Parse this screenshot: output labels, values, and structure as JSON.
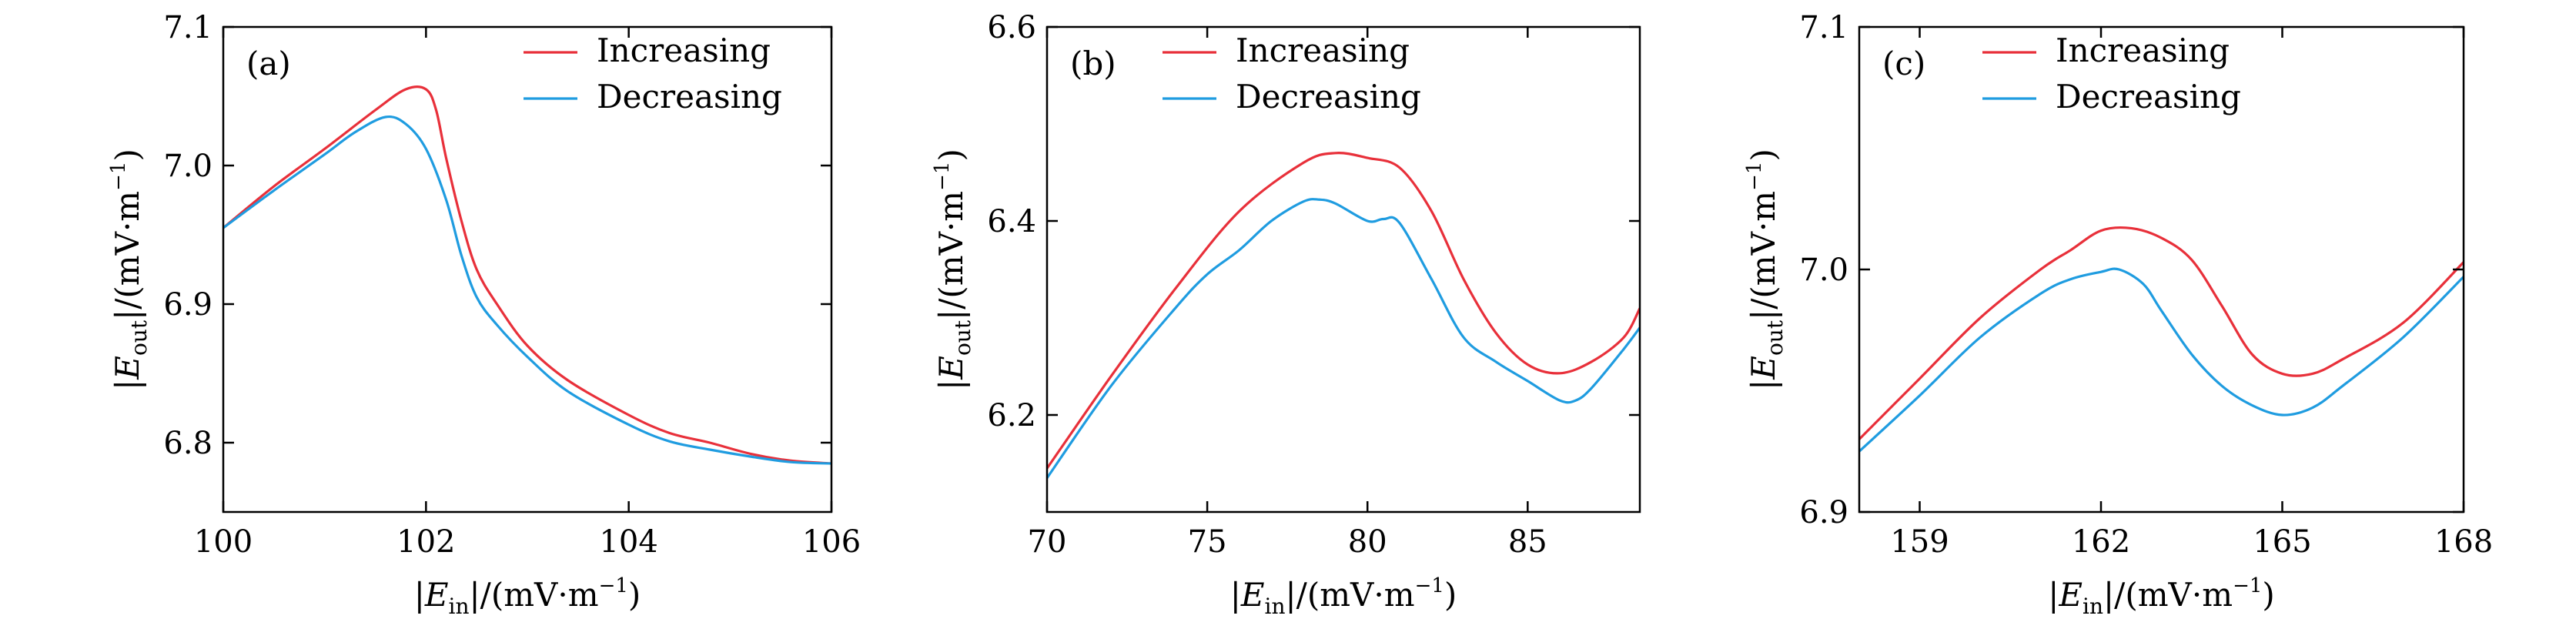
{
  "chart_data": [
    {
      "type": "line",
      "panel_label": "(a)",
      "xlabel": {
        "open": "|E",
        "sub": "in",
        "close": "|/(mV·m",
        "sup": "−1",
        "end": ")"
      },
      "ylabel": {
        "open": "|E",
        "sub": "out",
        "close": "|/(mV·m",
        "sup": "−1",
        "end": ")"
      },
      "xlim": [
        100,
        106
      ],
      "ylim": [
        6.75,
        7.1
      ],
      "xticks": [
        100,
        102,
        104,
        106
      ],
      "xtick_labels": [
        "100",
        "102",
        "104",
        "106"
      ],
      "yticks": [
        6.8,
        6.9,
        7.0,
        7.1
      ],
      "ytick_labels": [
        "6.8",
        "6.9",
        "7.0",
        "7.1"
      ],
      "legend_position": "top-right",
      "series": [
        {
          "name": "Increasing",
          "color": "#e8303a",
          "x": [
            100,
            100.5,
            101,
            101.5,
            101.8,
            102.0,
            102.1,
            102.2,
            102.35,
            102.5,
            102.7,
            103,
            103.4,
            104,
            104.4,
            104.8,
            105.2,
            105.6,
            106
          ],
          "y": [
            6.955,
            6.985,
            7.012,
            7.04,
            7.055,
            7.055,
            7.04,
            7.005,
            6.96,
            6.925,
            6.9,
            6.87,
            6.845,
            6.82,
            6.807,
            6.8,
            6.792,
            6.787,
            6.785
          ]
        },
        {
          "name": "Decreasing",
          "color": "#1f9ce0",
          "x": [
            100,
            100.5,
            101,
            101.3,
            101.6,
            101.8,
            102.0,
            102.2,
            102.35,
            102.5,
            102.7,
            103,
            103.4,
            104,
            104.4,
            104.8,
            105.2,
            105.6,
            106
          ],
          "y": [
            6.955,
            6.982,
            7.008,
            7.024,
            7.035,
            7.03,
            7.012,
            6.975,
            6.935,
            6.905,
            6.885,
            6.862,
            6.837,
            6.813,
            6.801,
            6.795,
            6.79,
            6.786,
            6.785
          ]
        }
      ]
    },
    {
      "type": "line",
      "panel_label": "(b)",
      "xlabel": {
        "open": "|E",
        "sub": "in",
        "close": "|/(mV·m",
        "sup": "−1",
        "end": ")"
      },
      "ylabel": {
        "open": "|E",
        "sub": "out",
        "close": "|/(mV·m",
        "sup": "−1",
        "end": ")"
      },
      "xlim": [
        70,
        88.5
      ],
      "ylim": [
        6.1,
        6.6
      ],
      "xticks": [
        70,
        75,
        80,
        85
      ],
      "xtick_labels": [
        "70",
        "75",
        "80",
        "85"
      ],
      "yticks": [
        6.2,
        6.4,
        6.6
      ],
      "ytick_labels": [
        "6.2",
        "6.4",
        "6.6"
      ],
      "legend_position": "top-right",
      "series": [
        {
          "name": "Increasing",
          "color": "#e8303a",
          "x": [
            70,
            72,
            74,
            76,
            78,
            79,
            80,
            81,
            82,
            83,
            84,
            85,
            86,
            87,
            88,
            88.5
          ],
          "y": [
            6.145,
            6.24,
            6.33,
            6.41,
            6.46,
            6.47,
            6.465,
            6.455,
            6.41,
            6.34,
            6.285,
            6.252,
            6.243,
            6.255,
            6.28,
            6.31
          ]
        },
        {
          "name": "Decreasing",
          "color": "#1f9ce0",
          "x": [
            70,
            72,
            74,
            75,
            76,
            77,
            78,
            78.5,
            79,
            80,
            80.5,
            81,
            82,
            83,
            84,
            85,
            86,
            86.5,
            87,
            88,
            88.5
          ],
          "y": [
            6.135,
            6.23,
            6.31,
            6.345,
            6.37,
            6.4,
            6.42,
            6.422,
            6.418,
            6.4,
            6.402,
            6.398,
            6.34,
            6.28,
            6.255,
            6.235,
            6.215,
            6.215,
            6.228,
            6.268,
            6.29
          ]
        }
      ]
    },
    {
      "type": "line",
      "panel_label": "(c)",
      "xlabel": {
        "open": "|E",
        "sub": "in",
        "close": "|/(mV·m",
        "sup": "−1",
        "end": ")"
      },
      "ylabel": {
        "open": "|E",
        "sub": "out",
        "close": "|/(mV·m",
        "sup": "−1",
        "end": ")"
      },
      "xlim": [
        158,
        168
      ],
      "ylim": [
        6.9,
        7.1
      ],
      "xticks": [
        159,
        162,
        165,
        168
      ],
      "xtick_labels": [
        "159",
        "162",
        "165",
        "168"
      ],
      "yticks": [
        6.9,
        7.0,
        7.1
      ],
      "ytick_labels": [
        "6.9",
        "7.0",
        "7.1"
      ],
      "legend_position": "top-left",
      "series": [
        {
          "name": "Increasing",
          "color": "#e8303a",
          "x": [
            158,
            159,
            160,
            161,
            161.5,
            162,
            162.5,
            163,
            163.5,
            164,
            164.5,
            165,
            165.5,
            166,
            167,
            168
          ],
          "y": [
            6.93,
            6.955,
            6.98,
            7.0,
            7.008,
            7.016,
            7.017,
            7.013,
            7.004,
            6.985,
            6.965,
            6.957,
            6.957,
            6.963,
            6.978,
            7.003
          ]
        },
        {
          "name": "Decreasing",
          "color": "#1f9ce0",
          "x": [
            158,
            159,
            160,
            161,
            161.5,
            162,
            162.3,
            162.7,
            163,
            163.5,
            164,
            164.5,
            165,
            165.5,
            166,
            167,
            168
          ],
          "y": [
            6.925,
            6.948,
            6.972,
            6.99,
            6.996,
            6.999,
            7.0,
            6.994,
            6.983,
            6.965,
            6.952,
            6.944,
            6.94,
            6.943,
            6.952,
            6.972,
            6.997
          ]
        }
      ]
    }
  ]
}
